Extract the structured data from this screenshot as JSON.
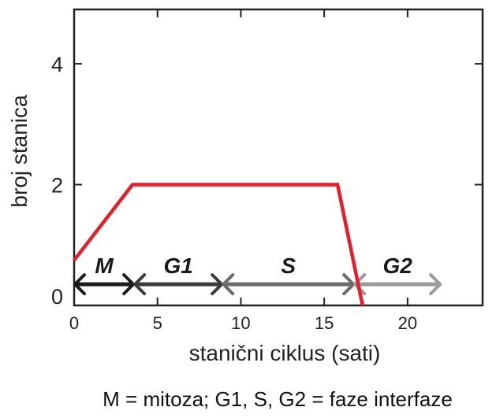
{
  "chart_data": {
    "type": "line",
    "title": "",
    "xlabel": "stanični ciklus (sati)",
    "ylabel": "broj stanica",
    "xlim": [
      0,
      24.5
    ],
    "ylim": [
      0,
      4.9
    ],
    "x_ticks": [
      0,
      5,
      10,
      15,
      20
    ],
    "y_ticks": [
      0,
      2,
      4
    ],
    "x_tick_labels": [
      "0",
      "5",
      "10",
      "15",
      "20"
    ],
    "y_tick_labels": [
      "0",
      "2",
      "4"
    ],
    "grid": false,
    "series": [
      {
        "color": "#e0202c",
        "x": [
          0,
          3.5,
          15.8,
          17.3
        ],
        "y": [
          0.75,
          2.0,
          2.0,
          0
        ]
      }
    ],
    "phases": [
      {
        "label": "M",
        "start": 0,
        "end": 3.6,
        "color": "#1b1b1b"
      },
      {
        "label": "G1",
        "start": 3.6,
        "end": 8.9,
        "color": "#3b3b3b"
      },
      {
        "label": "S",
        "start": 8.9,
        "end": 16.8,
        "color": "#6b6b6b"
      },
      {
        "label": "G2",
        "start": 16.8,
        "end": 22.0,
        "color": "#9a9a9a"
      }
    ],
    "phase_level": 0.35,
    "caption": "M = mitoza; G1, S, G2 = faze interfaze"
  }
}
